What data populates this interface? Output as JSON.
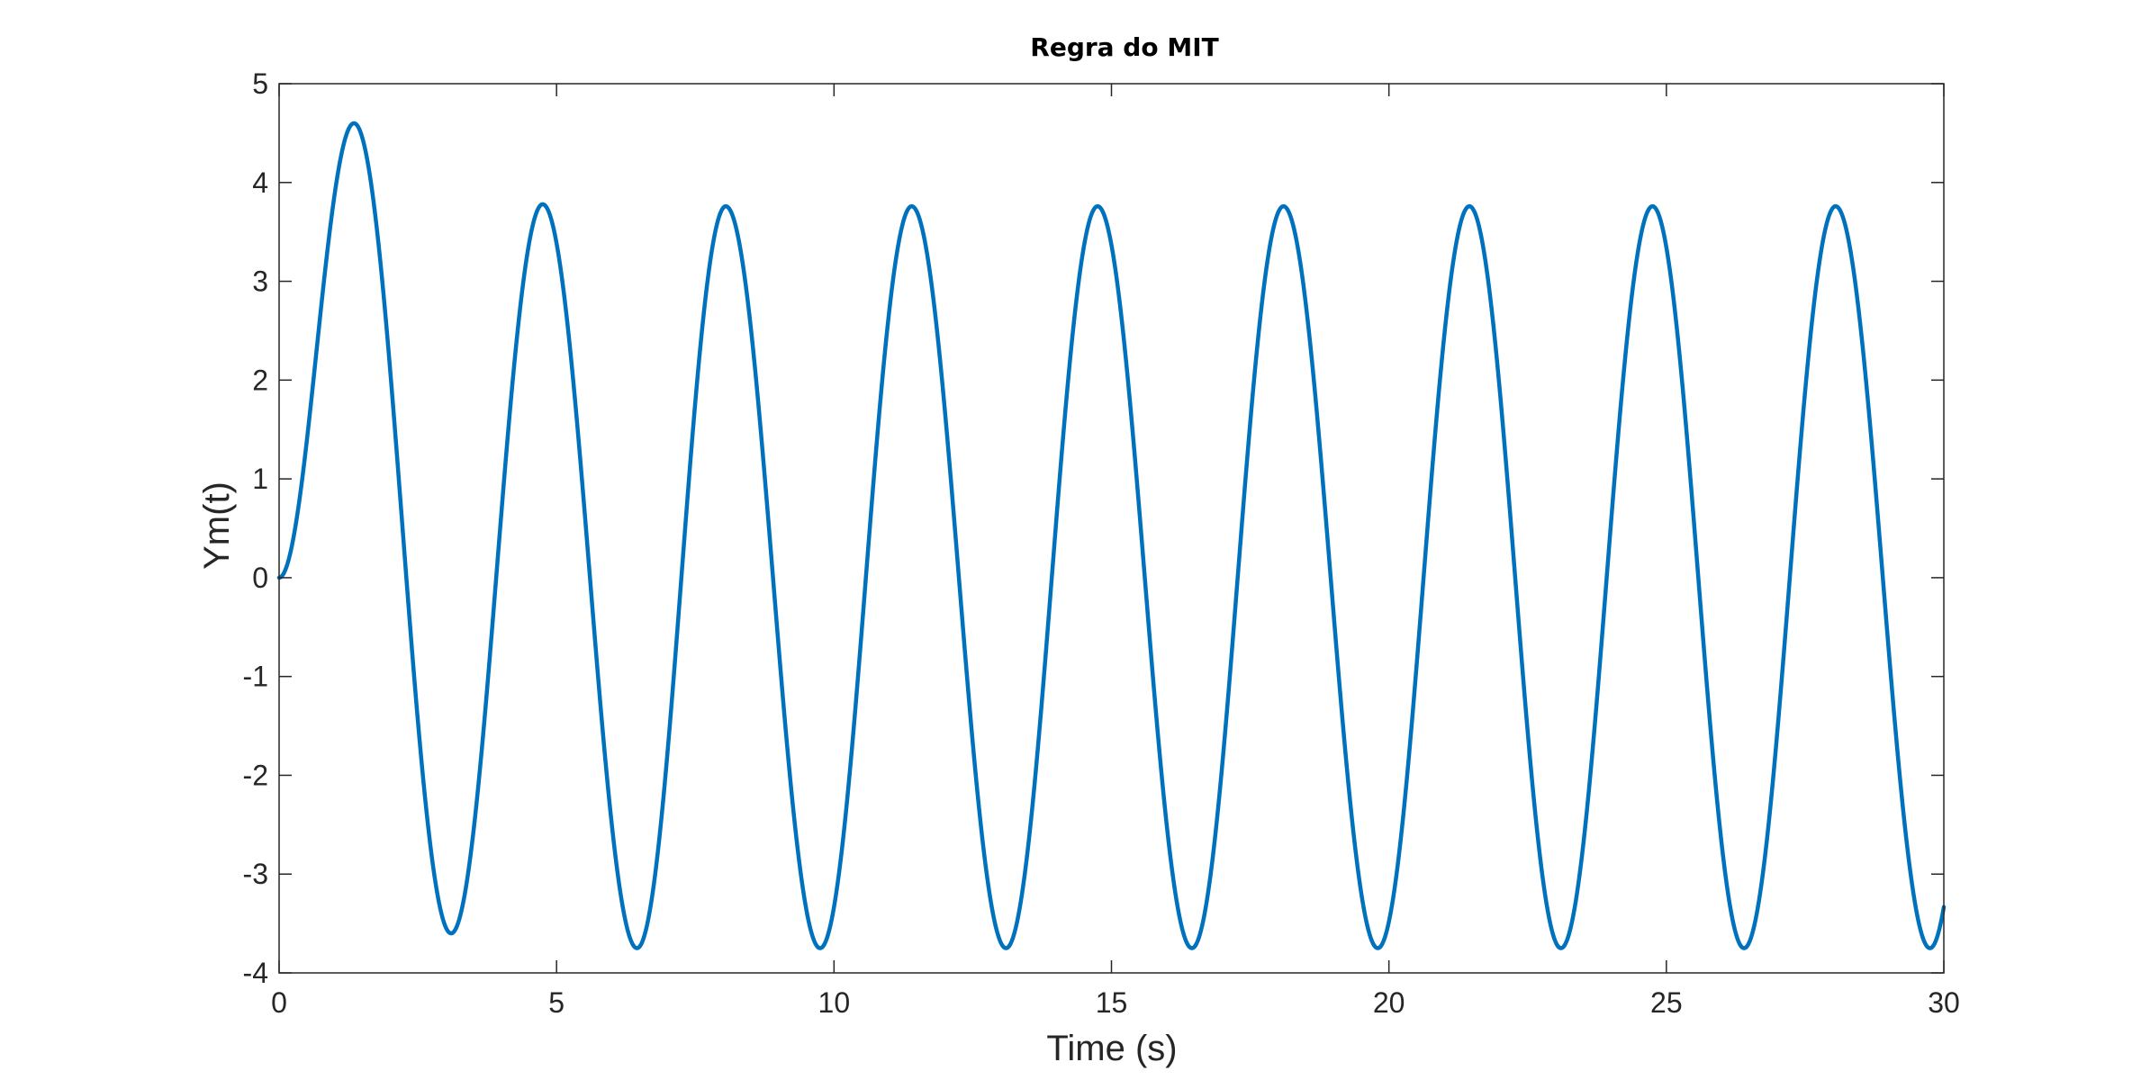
{
  "chart_data": {
    "type": "line",
    "title": "Regra do MIT",
    "xlabel": "Time (s)",
    "ylabel": "Ym(t)",
    "xlim": [
      0,
      30
    ],
    "ylim": [
      -4,
      5
    ],
    "xticks": [
      0,
      5,
      10,
      15,
      20,
      25,
      30
    ],
    "yticks": [
      5,
      4,
      3,
      2,
      1,
      0,
      -1,
      -2,
      -3,
      -4
    ],
    "xtick_labels": [
      "0",
      "5",
      "10",
      "15",
      "20",
      "25",
      "30"
    ],
    "ytick_labels": [
      "5",
      "4",
      "3",
      "2",
      "1",
      "0",
      "-1",
      "-2",
      "-3",
      "-4"
    ],
    "grid": false,
    "colors": {
      "line": "#0072BD",
      "frame": "#262626"
    },
    "series": [
      {
        "type": "oscillation",
        "x_start": 0,
        "x_end": 30,
        "first_peak": {
          "x": 1.35,
          "y": 4.6
        },
        "first_trough": {
          "x": 3.1,
          "y": -3.6
        },
        "peak_x": [
          4.75,
          8.05,
          11.4,
          14.75,
          18.1,
          21.45,
          24.75,
          28.05
        ],
        "peak_y": [
          3.78,
          3.76,
          3.76,
          3.76,
          3.76,
          3.76,
          3.76,
          3.76
        ],
        "trough_x": [
          6.45,
          9.75,
          13.1,
          16.45,
          19.8,
          23.1,
          26.4,
          29.75
        ],
        "trough_y": [
          -3.75,
          -3.75,
          -3.75,
          -3.75,
          -3.75,
          -3.75,
          -3.75,
          -3.75
        ],
        "end_value": {
          "x": 30,
          "y": -3.35
        }
      }
    ]
  }
}
